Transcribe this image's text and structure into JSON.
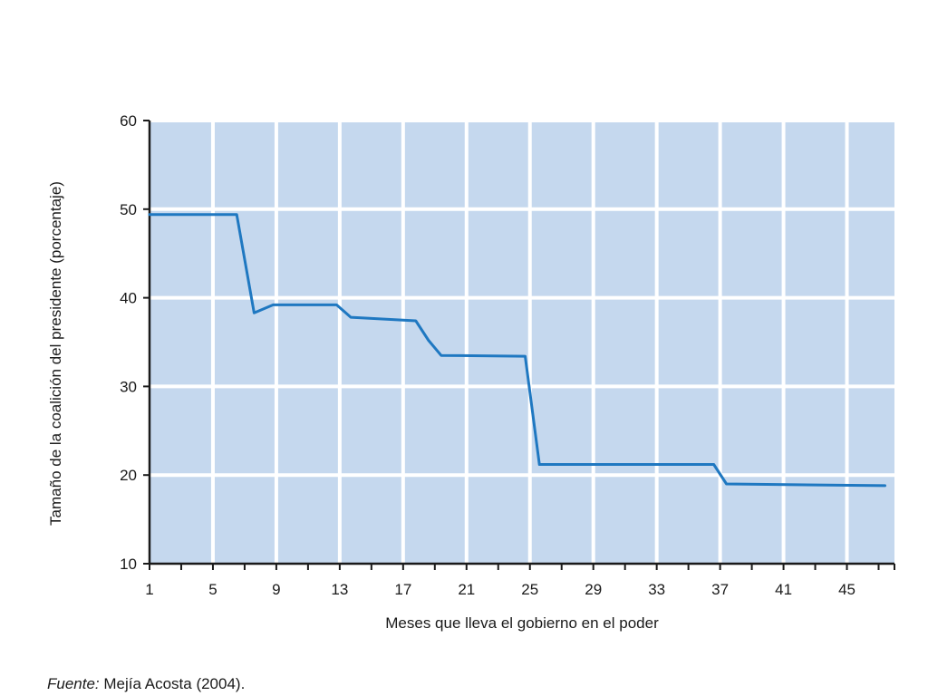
{
  "chart_data": {
    "type": "line",
    "title": "",
    "xlabel": "Meses que lleva el gobierno en el poder",
    "ylabel": "Tamaño de la coalición del presidente (porcentaje)",
    "xlim": [
      1,
      48
    ],
    "ylim": [
      10,
      60
    ],
    "x_ticks": [
      1,
      5,
      9,
      13,
      17,
      21,
      25,
      29,
      33,
      37,
      41,
      45
    ],
    "y_ticks": [
      10,
      20,
      30,
      40,
      50,
      60
    ],
    "grid": true,
    "plot_bg": "#c5d8ee",
    "grid_color": "#ffffff",
    "line_color": "#1f78c1",
    "series": [
      {
        "x": [
          1,
          6.5,
          7.6,
          8.8,
          12.8,
          13.7,
          17.8,
          18.6,
          19.4,
          24.7,
          25.6,
          36.6,
          37.4,
          47.4
        ],
        "y": [
          49.4,
          49.4,
          38.3,
          39.2,
          39.2,
          37.8,
          37.4,
          35.2,
          33.5,
          33.4,
          21.2,
          21.2,
          19.0,
          18.8
        ]
      }
    ]
  },
  "source": {
    "label": "Fuente:",
    "text": "Mejía Acosta (2004)."
  }
}
